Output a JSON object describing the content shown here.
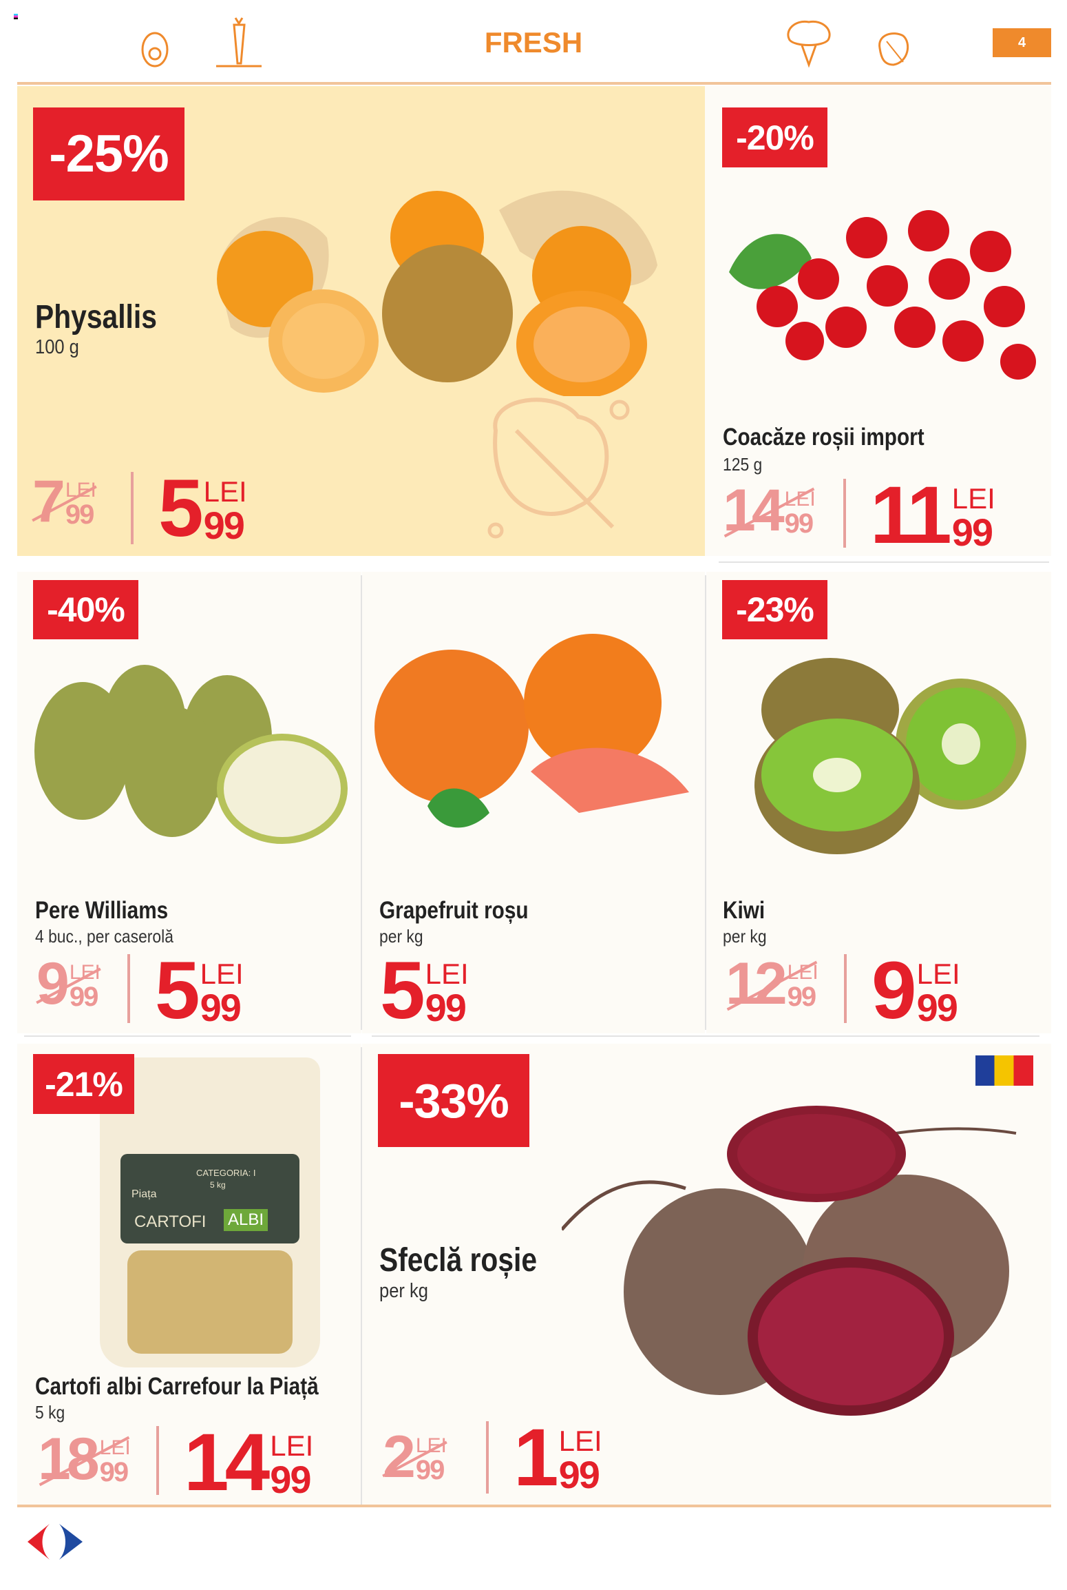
{
  "header": {
    "title": "FRESH",
    "page_number": "4",
    "icons": [
      "avocado-icon",
      "carrot-icon",
      "broccoli-icon",
      "lettuce-icon"
    ]
  },
  "colors": {
    "accent": "#ef8a2c",
    "discount_red": "#e4202a",
    "hero_bg": "#fdeab8"
  },
  "products": [
    {
      "discount": "-25%",
      "name": "Physallis",
      "unit": "100 g",
      "old_int": "7",
      "old_dec": "99",
      "new_int": "5",
      "new_dec": "99",
      "currency": "LEI"
    },
    {
      "discount": "-20%",
      "name": "Coacăze roșii import",
      "unit": "125 g",
      "old_int": "14",
      "old_dec": "99",
      "new_int": "11",
      "new_dec": "99",
      "currency": "LEI"
    },
    {
      "discount": "-40%",
      "name": "Pere Williams",
      "unit": "4 buc., per caserolă",
      "old_int": "9",
      "old_dec": "99",
      "new_int": "5",
      "new_dec": "99",
      "currency": "LEI"
    },
    {
      "name": "Grapefruit roșu",
      "unit": "per kg",
      "new_int": "5",
      "new_dec": "99",
      "currency": "LEI"
    },
    {
      "discount": "-23%",
      "name": "Kiwi",
      "unit": "per kg",
      "old_int": "12",
      "old_dec": "99",
      "new_int": "9",
      "new_dec": "99",
      "currency": "LEI"
    },
    {
      "discount": "-21%",
      "name": "Cartofi albi Carrefour la Piață",
      "unit": "5 kg",
      "old_int": "18",
      "old_dec": "99",
      "new_int": "14",
      "new_dec": "99",
      "currency": "LEI",
      "package_text": [
        "Piața",
        "CATEGORIA: I",
        "5 kg",
        "CARTOFI",
        "ALBI"
      ]
    },
    {
      "discount": "-33%",
      "name": "Sfeclă roșie",
      "unit": "per kg",
      "old_int": "2",
      "old_dec": "99",
      "new_int": "1",
      "new_dec": "99",
      "currency": "LEI",
      "origin_flag": "romania-flag"
    }
  ],
  "footer": {
    "logo": "carrefour-logo"
  }
}
